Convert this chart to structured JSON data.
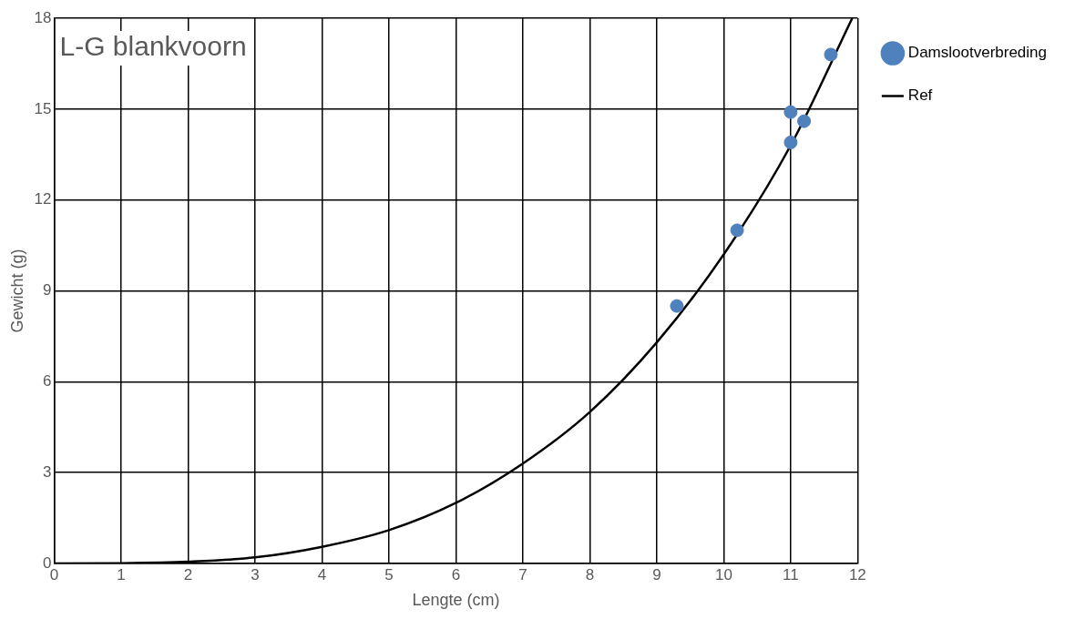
{
  "chart_data": {
    "type": "scatter",
    "title": "L-G blankvoorn",
    "xlabel": "Lengte (cm)",
    "ylabel": "Gewicht (g)",
    "xlim": [
      0,
      12
    ],
    "xticks": [
      0,
      1,
      2,
      3,
      4,
      5,
      6,
      7,
      8,
      9,
      10,
      11,
      12
    ],
    "ylim": [
      0,
      18
    ],
    "yticks": [
      0,
      3,
      6,
      9,
      12,
      15,
      18
    ],
    "grid": true,
    "legend": "top right",
    "series": [
      {
        "name": "Damslootverbreding",
        "color": "#4f81bd",
        "marker": "circle",
        "x": [
          9.3,
          10.2,
          11.0,
          11.0,
          11.2,
          11.6
        ],
        "values": [
          8.5,
          11.0,
          14.9,
          13.9,
          14.6,
          16.8
        ]
      },
      {
        "name": "Ref",
        "type": "line",
        "color": "#000000",
        "marker": "none",
        "line_style": "solid",
        "x": [
          0,
          1,
          2,
          3,
          4,
          5,
          6,
          7,
          8,
          9,
          10,
          11,
          11.92
        ],
        "values": [
          0,
          0.01,
          0.06,
          0.2,
          0.55,
          1.1,
          2.0,
          3.3,
          5.0,
          7.3,
          10.2,
          13.8,
          18
        ]
      }
    ]
  }
}
